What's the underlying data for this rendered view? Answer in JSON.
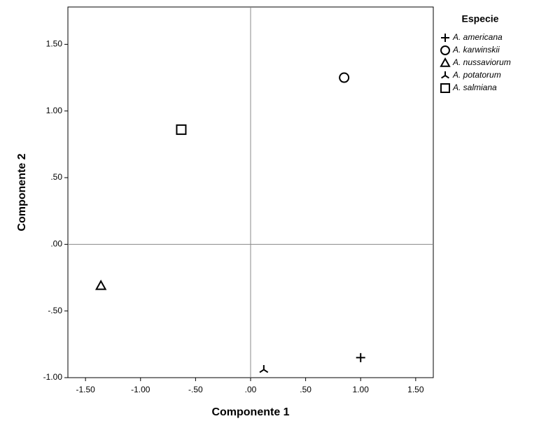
{
  "chart_data": {
    "type": "scatter",
    "x_label": "Componente 1",
    "y_label": "Componente 2",
    "legend_title": "Especie",
    "xlim": [
      -1.66,
      1.66
    ],
    "ylim": [
      -1.0,
      1.78
    ],
    "xticks": [
      {
        "value": -1.5,
        "label": "-1.50"
      },
      {
        "value": -1.0,
        "label": "-1.00"
      },
      {
        "value": -0.5,
        "label": "-.50"
      },
      {
        "value": 0,
        "label": ".00"
      },
      {
        "value": 0.5,
        "label": ".50"
      },
      {
        "value": 1.0,
        "label": "1.00"
      },
      {
        "value": 1.5,
        "label": "1.50"
      }
    ],
    "yticks": [
      {
        "value": -1.0,
        "label": "-1.00"
      },
      {
        "value": -0.5,
        "label": "-.50"
      },
      {
        "value": 0,
        "label": ".00"
      },
      {
        "value": 0.5,
        "label": ".50"
      },
      {
        "value": 1.0,
        "label": "1.00"
      },
      {
        "value": 1.5,
        "label": "1.50"
      }
    ],
    "reference_lines": {
      "x": 0,
      "y": 0
    },
    "legend": "right",
    "series": [
      {
        "name": "A. americana",
        "marker": "plus",
        "color": "#000000",
        "x": [
          1.0
        ],
        "values": [
          -0.85
        ]
      },
      {
        "name": "A. karwinskii",
        "marker": "circle",
        "color": "#000000",
        "x": [
          0.85
        ],
        "values": [
          1.25
        ]
      },
      {
        "name": "A. nussaviorum",
        "marker": "triangle",
        "color": "#000000",
        "x": [
          -1.36
        ],
        "values": [
          -0.31
        ]
      },
      {
        "name": "A. potatorum",
        "marker": "tri",
        "color": "#000000",
        "x": [
          0.12
        ],
        "values": [
          -0.94
        ]
      },
      {
        "name": "A. salmiana",
        "marker": "square",
        "color": "#000000",
        "x": [
          -0.63
        ],
        "values": [
          0.86
        ]
      }
    ]
  }
}
